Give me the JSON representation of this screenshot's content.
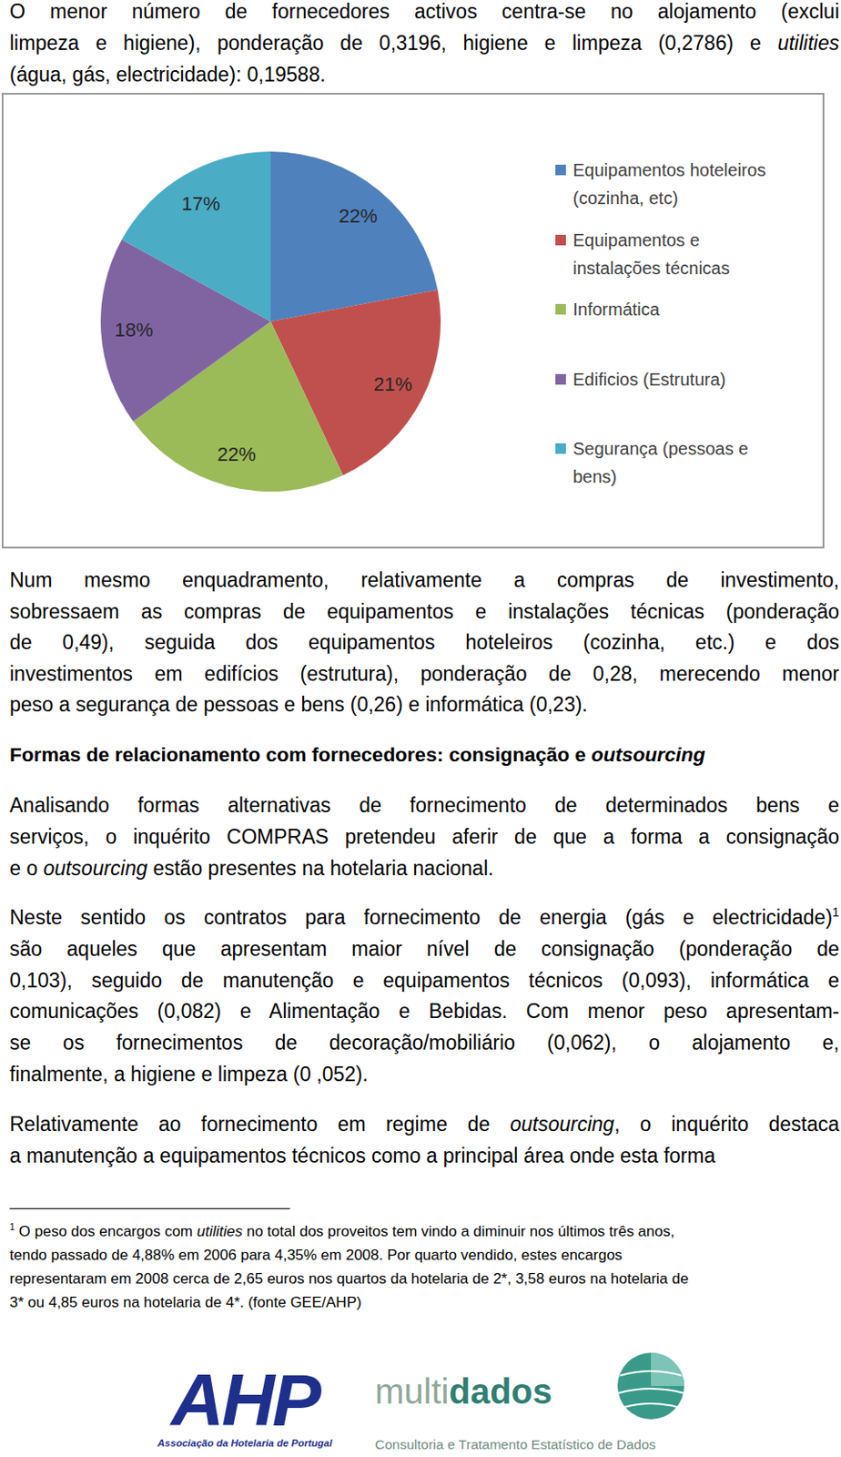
{
  "document": {
    "intro": [
      [
        "O menor número de fornecedores activos centra-se no alojamento (exclui"
      ],
      [
        "limpeza e higiene), ponderação de 0,3196, higiene e limpeza (0,2786) e ",
        {
          "text": "utilities",
          "style": "italic"
        }
      ],
      [
        "(água, gás, electricidade): 0,19588."
      ]
    ],
    "after_chart": [
      [
        "Num mesmo enquadramento, relativamente a compras de investimento,"
      ],
      [
        "sobressaem as compras de equipamentos e instalações técnicas (ponderação"
      ],
      [
        "de 0,49), seguida dos equipamentos hoteleiros (cozinha, etc.) e dos"
      ],
      [
        "investimentos em edifícios (estrutura), ponderação de 0,28, merecendo menor"
      ],
      [
        "peso a segurança de pessoas e bens (0,26) e informática (0,23)."
      ]
    ],
    "heading": [
      "Formas de relacionamento com fornecedores: consignação e ",
      {
        "text": "outsourcing",
        "style": "italic"
      }
    ],
    "section_paragraphs": [
      [
        [
          "Analisando formas alternativas de fornecimento de determinados bens e"
        ],
        [
          "serviços, o inquérito COMPRAS pretendeu aferir de que a forma a consignação"
        ],
        [
          "e o ",
          {
            "text": "outsourcing",
            "style": "italic"
          },
          " estão presentes na hotelaria nacional."
        ]
      ],
      [
        [
          "Neste sentido os contratos para fornecimento de energia (gás e electricidade)",
          {
            "text": "1",
            "style": "sup"
          }
        ],
        [
          "são aqueles que apresentam maior nível de consignação (ponderação de"
        ],
        [
          "0,103), seguido de manutenção e equipamentos técnicos (0,093), informática e"
        ],
        [
          "comunicações (0,082) e Alimentação e Bebidas. Com menor peso apresentam-"
        ],
        [
          "se os fornecimentos de decoração/mobiliário (0,062), o alojamento e,"
        ],
        [
          "finalmente, a higiene e limpeza (0 ,052)."
        ]
      ],
      [
        [
          "Relativamente ao fornecimento em regime de ",
          {
            "text": "outsourcing",
            "style": "italic"
          },
          ", o inquérito destaca"
        ],
        [
          "a manutenção a equipamentos técnicos como a principal área onde esta forma"
        ]
      ]
    ],
    "footnote": [
      [
        {
          "text": "1",
          "style": "sup"
        },
        " O peso dos encargos com ",
        {
          "text": "utilities",
          "style": "italic"
        },
        " no total dos proveitos tem vindo a diminuir nos últimos três anos,"
      ],
      [
        "tendo passado de 4,88% em 2006 para 4,35% em 2008. Por quarto vendido, estes encargos"
      ],
      [
        "representaram em 2008 cerca de 2,65 euros nos quartos da hotelaria de 2*, 3,58 euros na hotelaria de"
      ],
      [
        "3* ou 4,85 euros na hotelaria de 4*. (fonte GEE/AHP)"
      ]
    ],
    "logos": {
      "ahp": {
        "name": "AHP",
        "tagline": "Associação da Hotelaria de Portugal"
      },
      "multidados": {
        "name_light": "multi",
        "name_bold": "dados",
        "tagline": "Consultoria e Tratamento Estatístico de Dados"
      }
    }
  },
  "chart_data": {
    "type": "pie",
    "categories": [
      "Equipamentos hoteleiros (cozinha, etc)",
      "Equipamentos e instalações técnicas",
      "Informática",
      "Edificios (Estrutura)",
      "Segurança (pessoas e bens)"
    ],
    "values": [
      22,
      21,
      22,
      18,
      17
    ],
    "value_labels": [
      "22%",
      "21%",
      "22%",
      "18%",
      "17%"
    ],
    "colors": [
      "#4f81bd",
      "#c0504d",
      "#9bbb59",
      "#8064a2",
      "#4bacc6"
    ],
    "data_labels": true,
    "legend": "right"
  }
}
